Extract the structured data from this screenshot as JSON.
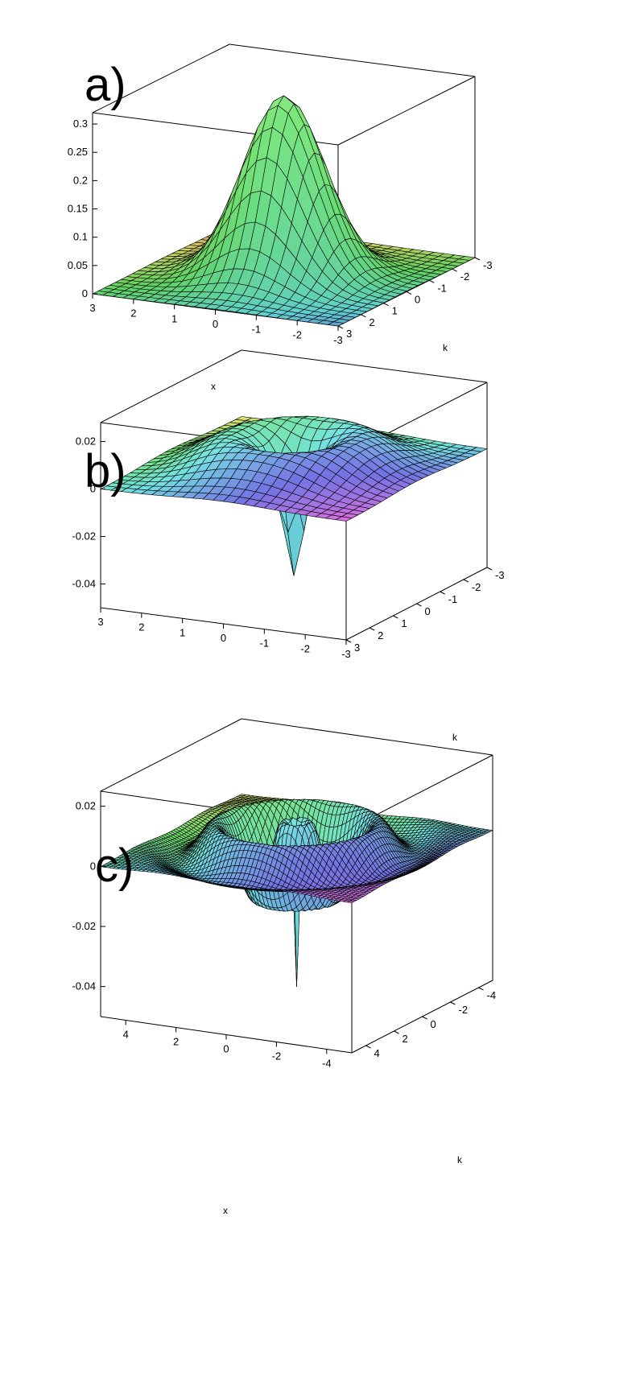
{
  "chart_data": [
    {
      "type": "surface",
      "panel_label": "a)",
      "function": "gaussian bump",
      "xlabel": "x",
      "ylabel": "k",
      "zlabel": "",
      "x_range": [
        -3,
        3
      ],
      "k_range": [
        -3,
        3
      ],
      "z_range": [
        0,
        0.32
      ],
      "x_ticks": [
        "3",
        "2",
        "1",
        "0",
        "-1",
        "-2",
        "-3"
      ],
      "k_ticks": [
        "-3",
        "-2",
        "-1",
        "0",
        "1",
        "2",
        "3"
      ],
      "z_ticks": [
        "0",
        "0.05",
        "0.1",
        "0.15",
        "0.2",
        "0.25",
        "0.3"
      ],
      "peak_value": 0.318,
      "grid_resolution": 24,
      "colormap": "rainbow (red-yellow-green-blue-purple)"
    },
    {
      "type": "surface",
      "panel_label": "b)",
      "function": "ring with negative central dip",
      "xlabel": "",
      "ylabel": "k",
      "zlabel": "",
      "x_range": [
        -3,
        3
      ],
      "k_range": [
        -3,
        3
      ],
      "z_range": [
        -0.05,
        0.028
      ],
      "x_ticks": [
        "3",
        "2",
        "1",
        "0",
        "-1",
        "-2",
        "-3"
      ],
      "k_ticks": [
        "-3",
        "-2",
        "-1",
        "0",
        "1",
        "2",
        "3"
      ],
      "z_ticks": [
        "0.02",
        "0",
        "-0.02",
        "-0.04"
      ],
      "ring_peak": 0.024,
      "center_min": -0.045,
      "grid_resolution": 24,
      "colormap": "rainbow (pink-purple-blue-cyan-green-yellow)"
    },
    {
      "type": "surface",
      "panel_label": "c)",
      "function": "concentric oscillating rings with sharp negative central spike",
      "xlabel": "x",
      "ylabel": "k",
      "zlabel": "",
      "x_range": [
        -5,
        5
      ],
      "k_range": [
        -5,
        5
      ],
      "z_range": [
        -0.05,
        0.025
      ],
      "x_ticks": [
        "4",
        "2",
        "0",
        "-2",
        "-4"
      ],
      "k_ticks": [
        "-4",
        "-2",
        "0",
        "2",
        "4"
      ],
      "z_ticks": [
        "0.02",
        "0",
        "-0.02",
        "-0.04"
      ],
      "center_min": -0.046,
      "grid_resolution": 60,
      "colormap": "rainbow (pink-purple-blue-cyan-green-yellow)"
    }
  ]
}
